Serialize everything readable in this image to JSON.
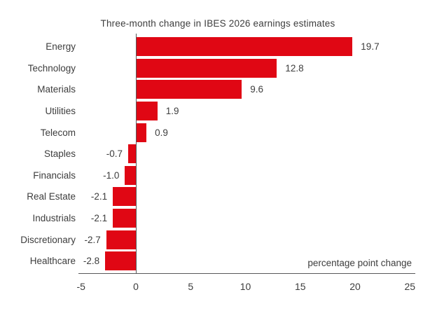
{
  "title": "Three-month change in IBES 2026 earnings estimates",
  "axis_note": "percentage point change",
  "chart_data": {
    "type": "bar",
    "orientation": "horizontal",
    "title": "Three-month change in IBES 2026 earnings estimates",
    "xlabel": "percentage point change",
    "ylabel": "",
    "categories": [
      "Energy",
      "Technology",
      "Materials",
      "Utilities",
      "Telecom",
      "Staples",
      "Financials",
      "Real Estate",
      "Industrials",
      "Discretionary",
      "Healthcare"
    ],
    "values": [
      19.7,
      12.8,
      9.6,
      1.9,
      0.9,
      -0.7,
      -1.0,
      -2.1,
      -2.1,
      -2.7,
      -2.8
    ],
    "value_labels": [
      "19.7",
      "12.8",
      "9.6",
      "1.9",
      "0.9",
      "-0.7",
      "-1.0",
      "-2.1",
      "-2.1",
      "-2.7",
      "-2.8"
    ],
    "xticks": [
      "-5",
      "0",
      "5",
      "10",
      "15",
      "20",
      "25"
    ],
    "xtick_values": [
      -5,
      0,
      5,
      10,
      15,
      20,
      25
    ],
    "xlim": [
      -5,
      25
    ],
    "grid": false,
    "legend": null,
    "bar_color": "#e00714",
    "text_color": "#3d3d3d",
    "axis_color": "#58585a",
    "background_color": "#ffffff"
  }
}
